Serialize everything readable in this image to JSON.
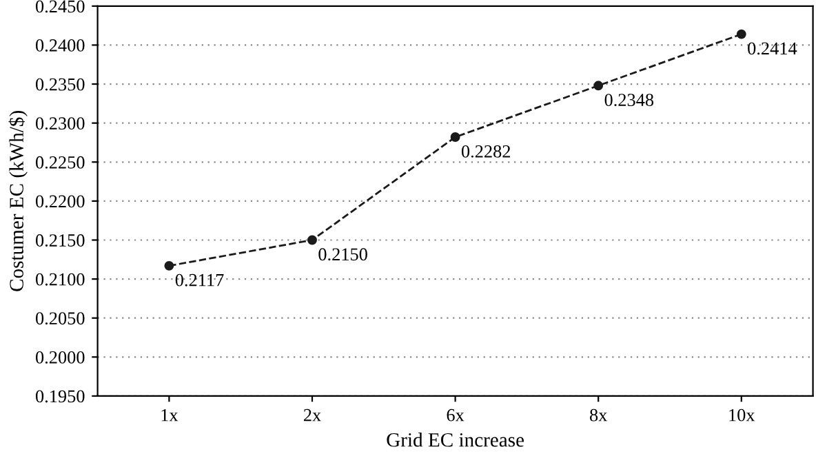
{
  "chart_data": {
    "type": "line",
    "xlabel": "Grid EC increase",
    "ylabel": "Costumer EC (kWh/$)",
    "categories": [
      "1x",
      "2x",
      "6x",
      "8x",
      "10x"
    ],
    "series": [
      {
        "color": "#1a1a1a",
        "values": [
          0.2117,
          0.215,
          0.2282,
          0.2348,
          0.2414
        ],
        "value_labels": [
          "0.2117",
          "0.2150",
          "0.2282",
          "0.2348",
          "0.2414"
        ]
      }
    ],
    "ylim": [
      0.195,
      0.245
    ],
    "yticks": [
      {
        "value": 0.195,
        "label": "0.1950"
      },
      {
        "value": 0.2,
        "label": "0.2000"
      },
      {
        "value": 0.205,
        "label": "0.2050"
      },
      {
        "value": 0.21,
        "label": "0.2100"
      },
      {
        "value": 0.215,
        "label": "0.2150"
      },
      {
        "value": 0.22,
        "label": "0.2200"
      },
      {
        "value": 0.225,
        "label": "0.2250"
      },
      {
        "value": 0.23,
        "label": "0.2300"
      },
      {
        "value": 0.235,
        "label": "0.2350"
      },
      {
        "value": 0.24,
        "label": "0.2400"
      },
      {
        "value": 0.245,
        "label": "0.2450"
      }
    ],
    "grid": "y",
    "marker": "circle",
    "line_style": "dashed",
    "legend": false
  }
}
